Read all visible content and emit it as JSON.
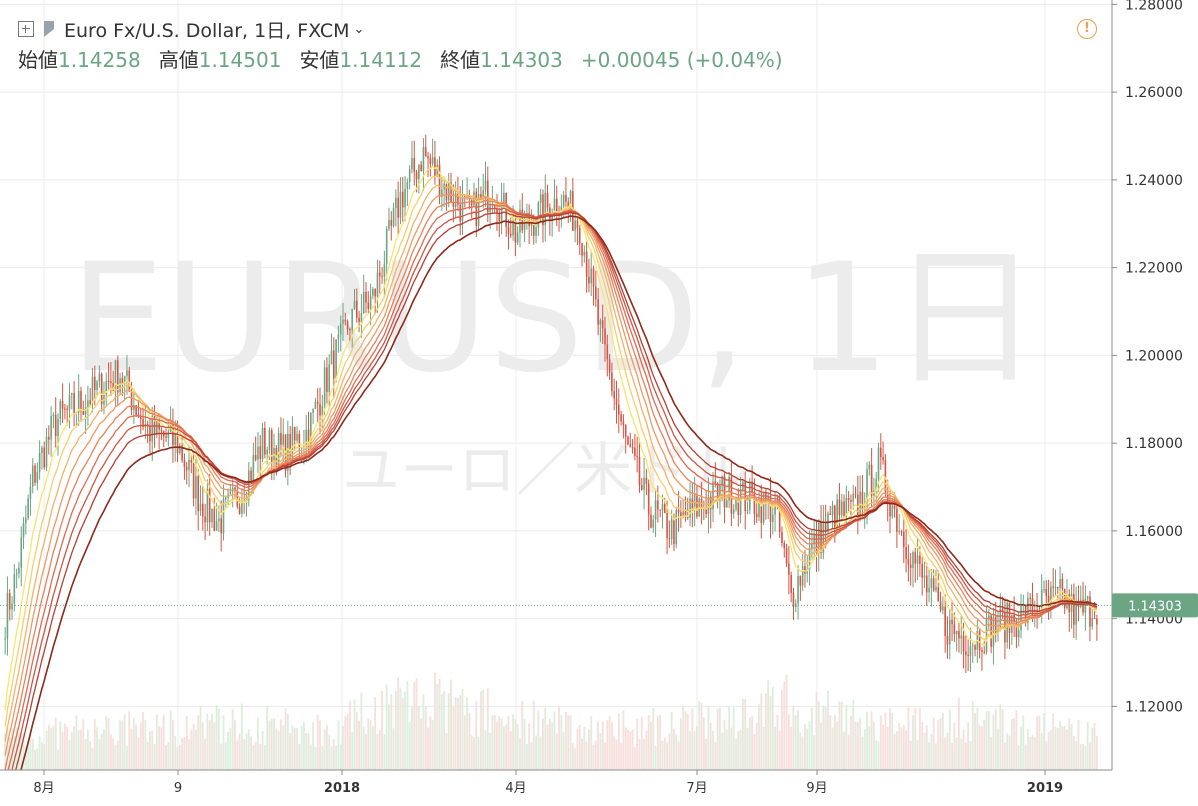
{
  "header": {
    "symbol_title": "Euro Fx/U.S. Dollar, 1日, FXCM",
    "ohlc": [
      {
        "label": "始値",
        "value": "1.14258"
      },
      {
        "label": "高値",
        "value": "1.14501"
      },
      {
        "label": "安値",
        "value": "1.14112"
      },
      {
        "label": "終値",
        "value": "1.14303"
      }
    ],
    "change": "+0.00045 (+0.04%)"
  },
  "watermark": {
    "line1": "EURUSD, 1日",
    "line2": "ユーロ／米ドル"
  },
  "colors": {
    "up": "#6ba583",
    "down": "#d75442",
    "ribbon": [
      "#fbe46c",
      "#f7cf6a",
      "#f3b266",
      "#ee9a63",
      "#e8805b",
      "#df6a50",
      "#cf5545",
      "#b63f33",
      "#8e2818"
    ],
    "price_badge": "#6ba583"
  },
  "chart_data": {
    "type": "candlestick",
    "x_ticks": [
      {
        "label": "8月",
        "bold": false
      },
      {
        "label": "9",
        "bold": false
      },
      {
        "label": "2018",
        "bold": true
      },
      {
        "label": "4月",
        "bold": false
      },
      {
        "label": "7月",
        "bold": false
      },
      {
        "label": "9月",
        "bold": false
      },
      {
        "label": "2019",
        "bold": true
      }
    ],
    "y_ticks": [
      "1.28000",
      "1.26000",
      "1.24000",
      "1.22000",
      "1.20000",
      "1.18000",
      "1.16000",
      "1.14000",
      "1.12000"
    ],
    "ylim": [
      1.1055,
      1.281
    ],
    "last_price": "1.14303",
    "last_price_value": 1.14303,
    "close_path": [
      [
        0,
        1.14
      ],
      [
        5,
        1.15
      ],
      [
        12,
        1.172
      ],
      [
        22,
        1.185
      ],
      [
        35,
        1.19
      ],
      [
        50,
        1.196
      ],
      [
        62,
        1.183
      ],
      [
        75,
        1.18
      ],
      [
        85,
        1.167
      ],
      [
        93,
        1.162
      ],
      [
        103,
        1.169
      ],
      [
        112,
        1.18
      ],
      [
        122,
        1.178
      ],
      [
        132,
        1.183
      ],
      [
        140,
        1.195
      ],
      [
        150,
        1.208
      ],
      [
        160,
        1.213
      ],
      [
        172,
        1.236
      ],
      [
        182,
        1.246
      ],
      [
        192,
        1.238
      ],
      [
        202,
        1.232
      ],
      [
        212,
        1.238
      ],
      [
        222,
        1.228
      ],
      [
        232,
        1.232
      ],
      [
        242,
        1.236
      ],
      [
        250,
        1.23
      ],
      [
        260,
        1.202
      ],
      [
        270,
        1.18
      ],
      [
        280,
        1.165
      ],
      [
        290,
        1.16
      ],
      [
        300,
        1.165
      ],
      [
        312,
        1.169
      ],
      [
        325,
        1.167
      ],
      [
        335,
        1.165
      ],
      [
        342,
        1.145
      ],
      [
        350,
        1.155
      ],
      [
        360,
        1.163
      ],
      [
        370,
        1.165
      ],
      [
        380,
        1.175
      ],
      [
        390,
        1.16
      ],
      [
        400,
        1.148
      ],
      [
        410,
        1.138
      ],
      [
        420,
        1.135
      ],
      [
        430,
        1.138
      ],
      [
        440,
        1.14
      ],
      [
        450,
        1.143
      ],
      [
        460,
        1.145
      ],
      [
        466,
        1.141
      ],
      [
        475,
        1.143
      ]
    ],
    "volume_profile": [
      [
        0,
        0.25
      ],
      [
        100,
        0.35
      ],
      [
        140,
        0.3
      ],
      [
        175,
        0.55
      ],
      [
        200,
        0.45
      ],
      [
        250,
        0.3
      ],
      [
        300,
        0.35
      ],
      [
        340,
        0.5
      ],
      [
        380,
        0.32
      ],
      [
        420,
        0.38
      ],
      [
        475,
        0.25
      ]
    ]
  }
}
